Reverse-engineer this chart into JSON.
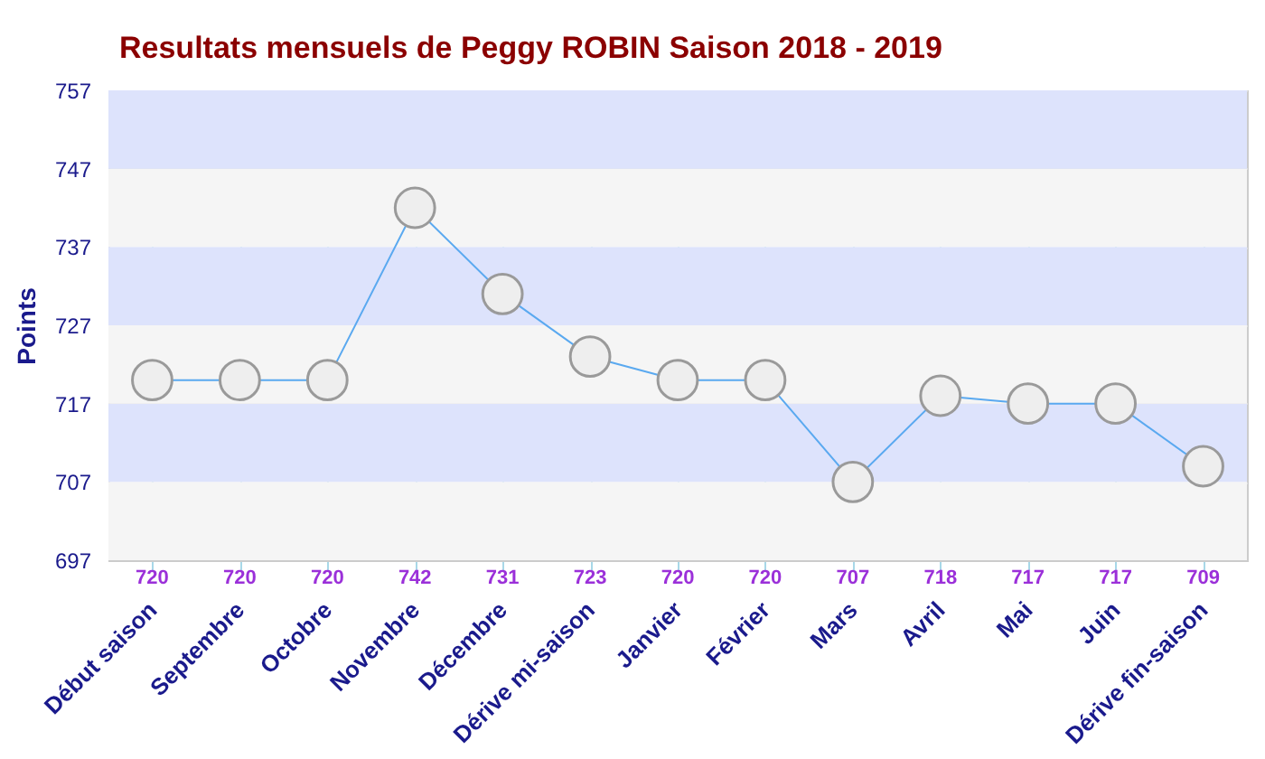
{
  "chart_data": {
    "type": "line",
    "title": "Resultats mensuels de Peggy ROBIN Saison 2018 - 2019",
    "ylabel": "Points",
    "categories": [
      "Début saison",
      "Septembre",
      "Octobre",
      "Novembre",
      "Décembre",
      "Dérive mi-saison",
      "Janvier",
      "Février",
      "Mars",
      "Avril",
      "Mai",
      "Juin",
      "Dérive fin-saison"
    ],
    "series": [
      {
        "color": "#5aa9f0",
        "values": [
          720,
          720,
          720,
          742,
          731,
          723,
          720,
          720,
          707,
          718,
          717,
          717,
          709
        ]
      }
    ],
    "ylim": [
      697,
      757
    ],
    "yticks": [
      697,
      707,
      717,
      727,
      737,
      747,
      757
    ],
    "grid": true,
    "marker": "circle",
    "line_style": "solid",
    "data_labels": true
  }
}
